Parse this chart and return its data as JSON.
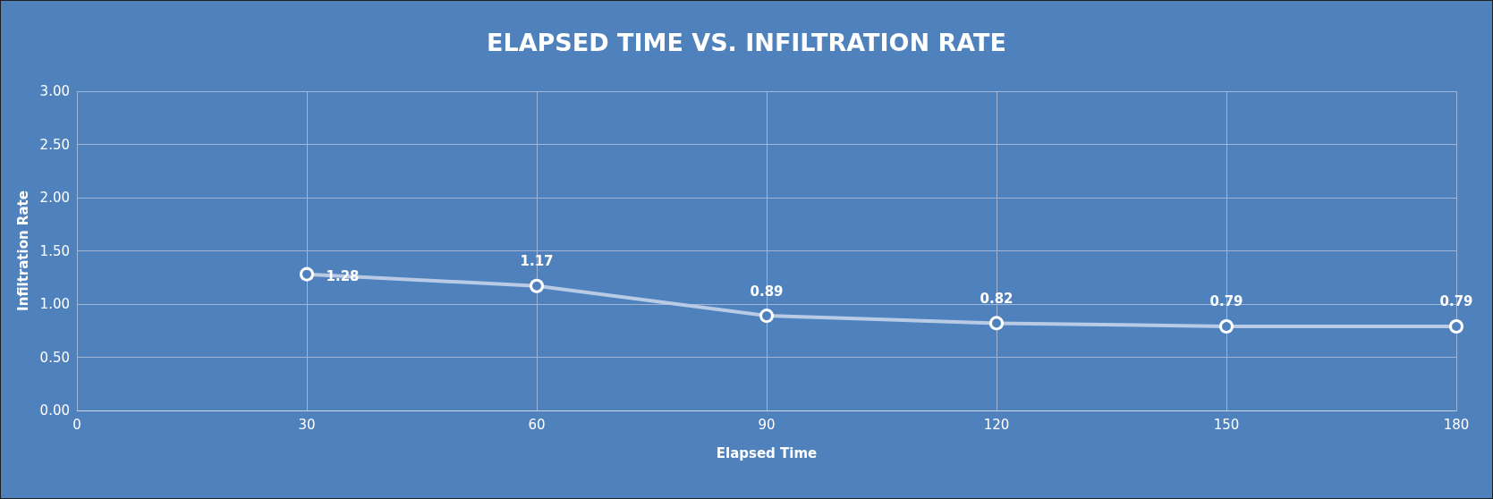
{
  "chart_data": {
    "type": "line",
    "title": "ELAPSED TIME VS. INFILTRATION RATE",
    "xlabel": "Elapsed Time",
    "ylabel": "Infiltration Rate",
    "x": [
      30,
      60,
      90,
      120,
      150,
      180
    ],
    "series": [
      {
        "color": "#b9cbe4",
        "values": [
          1.28,
          1.17,
          0.89,
          0.82,
          0.79,
          0.79
        ]
      }
    ],
    "xlim": [
      0,
      180
    ],
    "xticks": [
      0,
      30,
      60,
      90,
      120,
      150,
      180
    ],
    "ylim": [
      0,
      3
    ],
    "yticks": [
      {
        "value": 0,
        "label": "0.00"
      },
      {
        "value": 0.5,
        "label": "0.50"
      },
      {
        "value": 1,
        "label": "1.00"
      },
      {
        "value": 1.5,
        "label": "1.50"
      },
      {
        "value": 2,
        "label": "2.00"
      },
      {
        "value": 2.5,
        "label": "2.50"
      },
      {
        "value": 3,
        "label": "3.00"
      }
    ],
    "grid": true,
    "marker": "circle",
    "line_style": "solid",
    "data_labels": true
  }
}
